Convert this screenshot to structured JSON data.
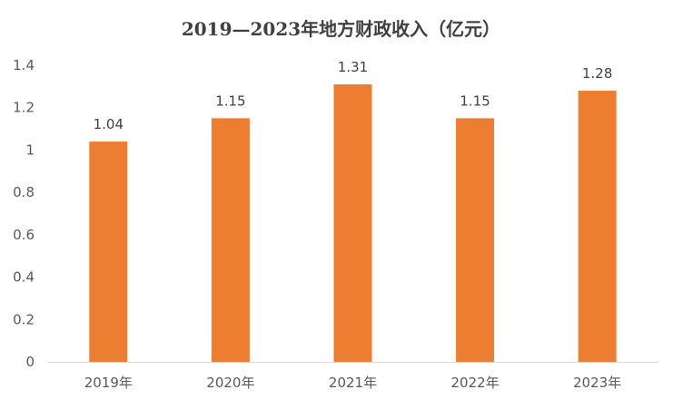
{
  "chart_data": {
    "type": "bar",
    "title": "2019—2023年地方财政收入（亿元）",
    "categories": [
      "2019年",
      "2020年",
      "2021年",
      "2022年",
      "2023年"
    ],
    "values": [
      1.04,
      1.15,
      1.31,
      1.15,
      1.28
    ],
    "value_labels": [
      "1.04",
      "1.15",
      "1.31",
      "1.15",
      "1.28"
    ],
    "xlabel": "",
    "ylabel": "",
    "ylim": [
      0,
      1.4
    ],
    "yticks": [
      0,
      0.2,
      0.4,
      0.6,
      0.8,
      1,
      1.2,
      1.4
    ],
    "ytick_labels": [
      "0",
      "0.2",
      "0.4",
      "0.6",
      "0.8",
      "1",
      "1.2",
      "1.4"
    ],
    "grid": false,
    "legend": "none",
    "bar_color": "#ED7D31",
    "axis_color": "#D9D9D9",
    "text_color": "#595959"
  }
}
